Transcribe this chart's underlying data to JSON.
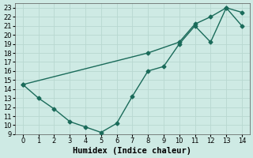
{
  "xlabel": "Humidex (Indice chaleur)",
  "background_color": "#ceeae4",
  "grid_color": "#b8d8d0",
  "line_color": "#1a6b5a",
  "xlim": [
    -0.5,
    14.5
  ],
  "ylim": [
    9,
    23.5
  ],
  "xticks": [
    0,
    1,
    2,
    3,
    4,
    5,
    6,
    7,
    8,
    9,
    10,
    11,
    12,
    13,
    14
  ],
  "yticks": [
    9,
    10,
    11,
    12,
    13,
    14,
    15,
    16,
    17,
    18,
    19,
    20,
    21,
    22,
    23
  ],
  "line1_x": [
    0,
    1,
    2,
    3,
    4,
    5,
    6,
    7,
    8,
    9,
    10,
    11,
    12,
    13,
    14
  ],
  "line1_y": [
    14.5,
    13.0,
    11.8,
    10.4,
    9.8,
    9.2,
    10.2,
    13.2,
    16.0,
    16.5,
    19.0,
    21.0,
    19.2,
    23.0,
    22.5
  ],
  "line2_x": [
    0,
    8,
    10,
    11,
    12,
    13,
    14
  ],
  "line2_y": [
    14.5,
    18.0,
    19.2,
    21.2,
    22.0,
    23.0,
    21.0
  ],
  "marker": "D",
  "markersize": 2.5,
  "linewidth": 1.0,
  "tick_fontsize": 6.0,
  "xlabel_fontsize": 7.5
}
